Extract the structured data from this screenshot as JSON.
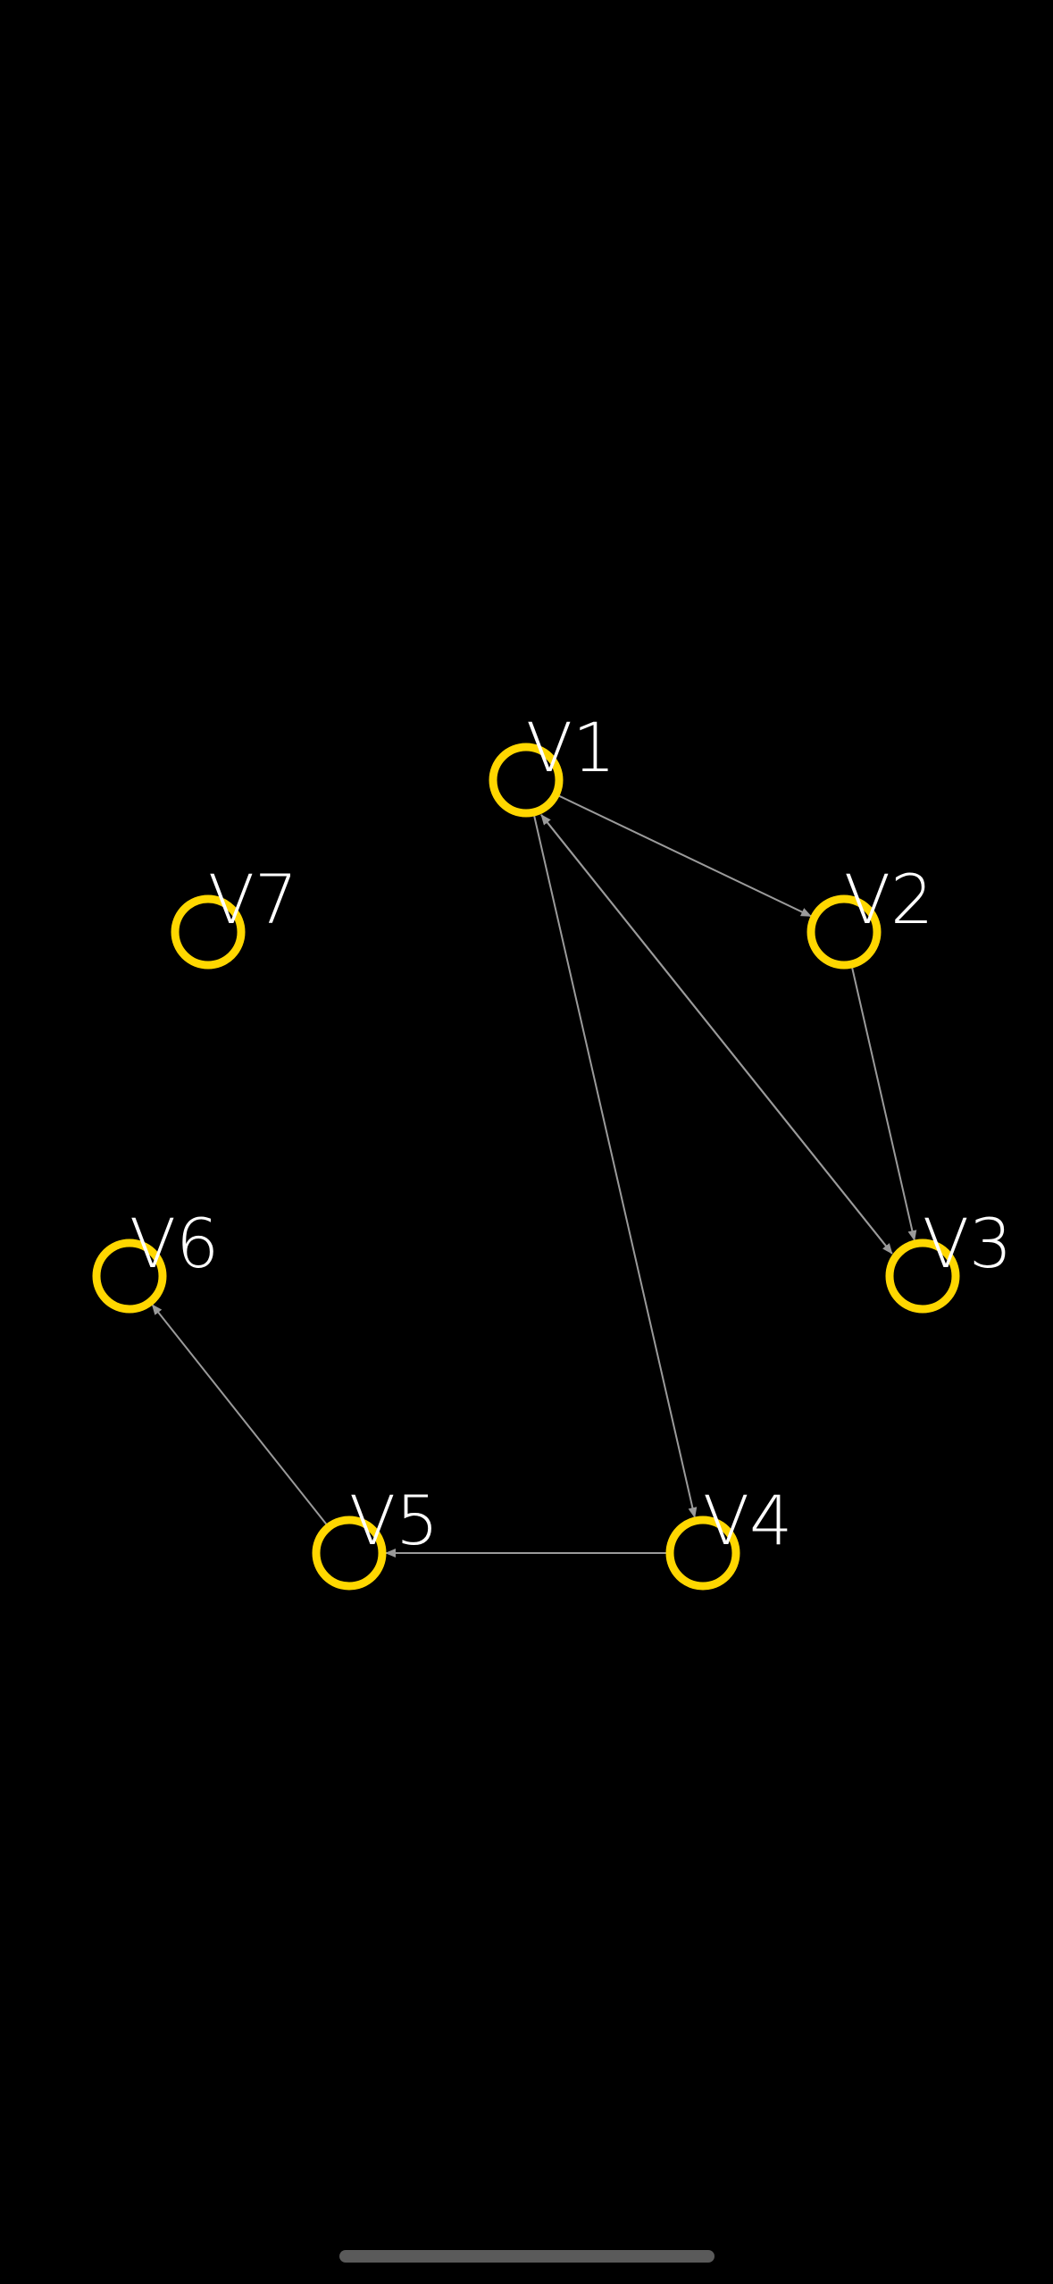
{
  "graph": {
    "node_color": "#FFD700",
    "edge_color": "#9a9a9a",
    "label_color": "#FFFFFF",
    "background": "#000000",
    "nodes": [
      {
        "id": "V1",
        "label": "V1"
      },
      {
        "id": "V2",
        "label": "V2"
      },
      {
        "id": "V3",
        "label": "V3"
      },
      {
        "id": "V4",
        "label": "V4"
      },
      {
        "id": "V5",
        "label": "V5"
      },
      {
        "id": "V6",
        "label": "V6"
      },
      {
        "id": "V7",
        "label": "V7"
      }
    ],
    "edges": [
      {
        "from": "V1",
        "to": "V2"
      },
      {
        "from": "V1",
        "to": "V3"
      },
      {
        "from": "V3",
        "to": "V1"
      },
      {
        "from": "V2",
        "to": "V3"
      },
      {
        "from": "V1",
        "to": "V4"
      },
      {
        "from": "V4",
        "to": "V5"
      },
      {
        "from": "V5",
        "to": "V6"
      }
    ]
  }
}
